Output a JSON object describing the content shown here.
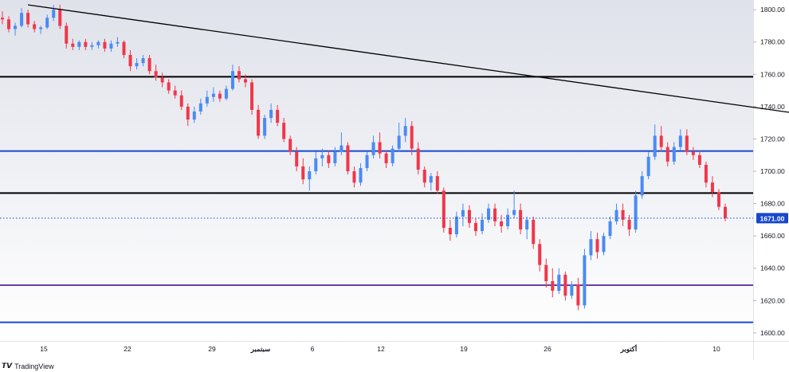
{
  "branding": {
    "logo_text": "TradingView"
  },
  "chart_data": {
    "type": "candlestick",
    "y_axis": {
      "range": [
        1595,
        1806
      ],
      "ticks": [
        "1800.00",
        "1780.00",
        "1760.00",
        "1740.00",
        "1720.00",
        "1700.00",
        "1680.00",
        "1660.00",
        "1640.00",
        "1620.00",
        "1600.00"
      ],
      "position": "right"
    },
    "x_axis": {
      "ticks": [
        "15",
        "22",
        "29",
        "سبتمبر",
        "6",
        "12",
        "19",
        "26",
        "أكتوبر",
        "10"
      ]
    },
    "current_price": {
      "label": "1671.00",
      "value": 1671.0,
      "color": "#1848cc"
    },
    "horizontal_levels": [
      {
        "value": 1758.5,
        "color": "#000000"
      },
      {
        "value": 1712.5,
        "color": "#1848cc"
      },
      {
        "value": 1686.5,
        "color": "#000000"
      },
      {
        "value": 1629.5,
        "color": "#6a3fa0"
      },
      {
        "value": 1606.5,
        "color": "#1848cc"
      }
    ],
    "trendline": {
      "from": {
        "candle": 4,
        "price": 1803
      },
      "to": {
        "candle": 249,
        "price": 1666
      },
      "color": "#000000"
    },
    "colors": {
      "up": "#4a8af4",
      "down": "#f0374a",
      "background_top": "#dfe2ea",
      "background_bottom": "#ffffff"
    },
    "candles": [
      {
        "o": 1795,
        "h": 1799,
        "l": 1791,
        "c": 1794
      },
      {
        "o": 1794,
        "h": 1796,
        "l": 1786,
        "c": 1788
      },
      {
        "o": 1788,
        "h": 1792,
        "l": 1784,
        "c": 1790
      },
      {
        "o": 1790,
        "h": 1801,
        "l": 1789,
        "c": 1798
      },
      {
        "o": 1798,
        "h": 1800,
        "l": 1789,
        "c": 1791
      },
      {
        "o": 1791,
        "h": 1793,
        "l": 1786,
        "c": 1788
      },
      {
        "o": 1788,
        "h": 1790,
        "l": 1785,
        "c": 1789
      },
      {
        "o": 1789,
        "h": 1797,
        "l": 1788,
        "c": 1795
      },
      {
        "o": 1795,
        "h": 1803,
        "l": 1793,
        "c": 1800
      },
      {
        "o": 1800,
        "h": 1803,
        "l": 1788,
        "c": 1790
      },
      {
        "o": 1790,
        "h": 1792,
        "l": 1776,
        "c": 1779
      },
      {
        "o": 1779,
        "h": 1782,
        "l": 1775,
        "c": 1777
      },
      {
        "o": 1777,
        "h": 1781,
        "l": 1775,
        "c": 1780
      },
      {
        "o": 1780,
        "h": 1782,
        "l": 1775,
        "c": 1777
      },
      {
        "o": 1777,
        "h": 1780,
        "l": 1775,
        "c": 1778
      },
      {
        "o": 1778,
        "h": 1781,
        "l": 1776,
        "c": 1780
      },
      {
        "o": 1780,
        "h": 1782,
        "l": 1774,
        "c": 1776
      },
      {
        "o": 1776,
        "h": 1781,
        "l": 1774,
        "c": 1779
      },
      {
        "o": 1779,
        "h": 1783,
        "l": 1777,
        "c": 1780
      },
      {
        "o": 1780,
        "h": 1781,
        "l": 1770,
        "c": 1772
      },
      {
        "o": 1772,
        "h": 1775,
        "l": 1762,
        "c": 1765
      },
      {
        "o": 1765,
        "h": 1770,
        "l": 1763,
        "c": 1767
      },
      {
        "o": 1767,
        "h": 1772,
        "l": 1765,
        "c": 1770
      },
      {
        "o": 1770,
        "h": 1772,
        "l": 1760,
        "c": 1762
      },
      {
        "o": 1762,
        "h": 1766,
        "l": 1756,
        "c": 1758
      },
      {
        "o": 1758,
        "h": 1761,
        "l": 1752,
        "c": 1755
      },
      {
        "o": 1755,
        "h": 1757,
        "l": 1748,
        "c": 1750
      },
      {
        "o": 1750,
        "h": 1753,
        "l": 1745,
        "c": 1747
      },
      {
        "o": 1747,
        "h": 1750,
        "l": 1738,
        "c": 1740
      },
      {
        "o": 1740,
        "h": 1742,
        "l": 1728,
        "c": 1732
      },
      {
        "o": 1732,
        "h": 1740,
        "l": 1730,
        "c": 1737
      },
      {
        "o": 1737,
        "h": 1745,
        "l": 1735,
        "c": 1742
      },
      {
        "o": 1742,
        "h": 1750,
        "l": 1740,
        "c": 1746
      },
      {
        "o": 1746,
        "h": 1752,
        "l": 1743,
        "c": 1748
      },
      {
        "o": 1748,
        "h": 1750,
        "l": 1743,
        "c": 1745
      },
      {
        "o": 1745,
        "h": 1753,
        "l": 1744,
        "c": 1751
      },
      {
        "o": 1751,
        "h": 1766,
        "l": 1750,
        "c": 1762
      },
      {
        "o": 1762,
        "h": 1765,
        "l": 1755,
        "c": 1757
      },
      {
        "o": 1757,
        "h": 1760,
        "l": 1752,
        "c": 1755
      },
      {
        "o": 1755,
        "h": 1757,
        "l": 1735,
        "c": 1738
      },
      {
        "o": 1738,
        "h": 1741,
        "l": 1720,
        "c": 1722
      },
      {
        "o": 1722,
        "h": 1735,
        "l": 1720,
        "c": 1733
      },
      {
        "o": 1733,
        "h": 1742,
        "l": 1730,
        "c": 1738
      },
      {
        "o": 1738,
        "h": 1741,
        "l": 1728,
        "c": 1730
      },
      {
        "o": 1730,
        "h": 1733,
        "l": 1718,
        "c": 1720
      },
      {
        "o": 1720,
        "h": 1722,
        "l": 1710,
        "c": 1712
      },
      {
        "o": 1712,
        "h": 1715,
        "l": 1700,
        "c": 1703
      },
      {
        "o": 1703,
        "h": 1708,
        "l": 1692,
        "c": 1695
      },
      {
        "o": 1695,
        "h": 1703,
        "l": 1688,
        "c": 1700
      },
      {
        "o": 1700,
        "h": 1712,
        "l": 1698,
        "c": 1708
      },
      {
        "o": 1708,
        "h": 1714,
        "l": 1703,
        "c": 1710
      },
      {
        "o": 1710,
        "h": 1713,
        "l": 1702,
        "c": 1705
      },
      {
        "o": 1705,
        "h": 1715,
        "l": 1703,
        "c": 1712
      },
      {
        "o": 1712,
        "h": 1724,
        "l": 1710,
        "c": 1716
      },
      {
        "o": 1716,
        "h": 1718,
        "l": 1698,
        "c": 1700
      },
      {
        "o": 1700,
        "h": 1703,
        "l": 1690,
        "c": 1693
      },
      {
        "o": 1693,
        "h": 1705,
        "l": 1691,
        "c": 1702
      },
      {
        "o": 1702,
        "h": 1712,
        "l": 1700,
        "c": 1710
      },
      {
        "o": 1710,
        "h": 1722,
        "l": 1708,
        "c": 1718
      },
      {
        "o": 1718,
        "h": 1724,
        "l": 1708,
        "c": 1711
      },
      {
        "o": 1711,
        "h": 1713,
        "l": 1702,
        "c": 1705
      },
      {
        "o": 1705,
        "h": 1716,
        "l": 1703,
        "c": 1714
      },
      {
        "o": 1714,
        "h": 1730,
        "l": 1712,
        "c": 1722
      },
      {
        "o": 1722,
        "h": 1733,
        "l": 1718,
        "c": 1728
      },
      {
        "o": 1728,
        "h": 1731,
        "l": 1710,
        "c": 1714
      },
      {
        "o": 1714,
        "h": 1718,
        "l": 1698,
        "c": 1701
      },
      {
        "o": 1701,
        "h": 1703,
        "l": 1690,
        "c": 1693
      },
      {
        "o": 1693,
        "h": 1699,
        "l": 1688,
        "c": 1697
      },
      {
        "o": 1697,
        "h": 1700,
        "l": 1686,
        "c": 1688
      },
      {
        "o": 1688,
        "h": 1690,
        "l": 1662,
        "c": 1665
      },
      {
        "o": 1665,
        "h": 1670,
        "l": 1657,
        "c": 1661
      },
      {
        "o": 1661,
        "h": 1675,
        "l": 1659,
        "c": 1672
      },
      {
        "o": 1672,
        "h": 1680,
        "l": 1666,
        "c": 1676
      },
      {
        "o": 1676,
        "h": 1679,
        "l": 1665,
        "c": 1668
      },
      {
        "o": 1668,
        "h": 1671,
        "l": 1660,
        "c": 1663
      },
      {
        "o": 1663,
        "h": 1674,
        "l": 1661,
        "c": 1670
      },
      {
        "o": 1670,
        "h": 1680,
        "l": 1668,
        "c": 1677
      },
      {
        "o": 1677,
        "h": 1680,
        "l": 1666,
        "c": 1669
      },
      {
        "o": 1669,
        "h": 1673,
        "l": 1662,
        "c": 1666
      },
      {
        "o": 1666,
        "h": 1677,
        "l": 1664,
        "c": 1673
      },
      {
        "o": 1673,
        "h": 1688,
        "l": 1671,
        "c": 1676
      },
      {
        "o": 1676,
        "h": 1680,
        "l": 1661,
        "c": 1664
      },
      {
        "o": 1664,
        "h": 1672,
        "l": 1658,
        "c": 1670
      },
      {
        "o": 1670,
        "h": 1672,
        "l": 1652,
        "c": 1655
      },
      {
        "o": 1655,
        "h": 1658,
        "l": 1638,
        "c": 1642
      },
      {
        "o": 1642,
        "h": 1646,
        "l": 1628,
        "c": 1632
      },
      {
        "o": 1632,
        "h": 1640,
        "l": 1622,
        "c": 1626
      },
      {
        "o": 1626,
        "h": 1640,
        "l": 1624,
        "c": 1636
      },
      {
        "o": 1636,
        "h": 1638,
        "l": 1620,
        "c": 1623
      },
      {
        "o": 1623,
        "h": 1632,
        "l": 1621,
        "c": 1630
      },
      {
        "o": 1630,
        "h": 1634,
        "l": 1614,
        "c": 1617
      },
      {
        "o": 1617,
        "h": 1652,
        "l": 1615,
        "c": 1648
      },
      {
        "o": 1648,
        "h": 1663,
        "l": 1645,
        "c": 1658
      },
      {
        "o": 1658,
        "h": 1662,
        "l": 1646,
        "c": 1650
      },
      {
        "o": 1650,
        "h": 1662,
        "l": 1648,
        "c": 1660
      },
      {
        "o": 1660,
        "h": 1672,
        "l": 1658,
        "c": 1669
      },
      {
        "o": 1669,
        "h": 1680,
        "l": 1667,
        "c": 1676
      },
      {
        "o": 1676,
        "h": 1680,
        "l": 1666,
        "c": 1670
      },
      {
        "o": 1670,
        "h": 1673,
        "l": 1660,
        "c": 1664
      },
      {
        "o": 1664,
        "h": 1688,
        "l": 1662,
        "c": 1685
      },
      {
        "o": 1685,
        "h": 1700,
        "l": 1683,
        "c": 1697
      },
      {
        "o": 1697,
        "h": 1712,
        "l": 1695,
        "c": 1709
      },
      {
        "o": 1709,
        "h": 1729,
        "l": 1707,
        "c": 1722
      },
      {
        "o": 1722,
        "h": 1728,
        "l": 1712,
        "c": 1715
      },
      {
        "o": 1715,
        "h": 1718,
        "l": 1703,
        "c": 1706
      },
      {
        "o": 1706,
        "h": 1718,
        "l": 1704,
        "c": 1715
      },
      {
        "o": 1715,
        "h": 1726,
        "l": 1713,
        "c": 1722
      },
      {
        "o": 1722,
        "h": 1726,
        "l": 1710,
        "c": 1712
      },
      {
        "o": 1712,
        "h": 1715,
        "l": 1707,
        "c": 1710
      },
      {
        "o": 1710,
        "h": 1713,
        "l": 1702,
        "c": 1704
      },
      {
        "o": 1704,
        "h": 1706,
        "l": 1690,
        "c": 1693
      },
      {
        "o": 1693,
        "h": 1697,
        "l": 1684,
        "c": 1687
      },
      {
        "o": 1687,
        "h": 1689,
        "l": 1676,
        "c": 1678
      },
      {
        "o": 1678,
        "h": 1680,
        "l": 1669,
        "c": 1671
      }
    ]
  }
}
